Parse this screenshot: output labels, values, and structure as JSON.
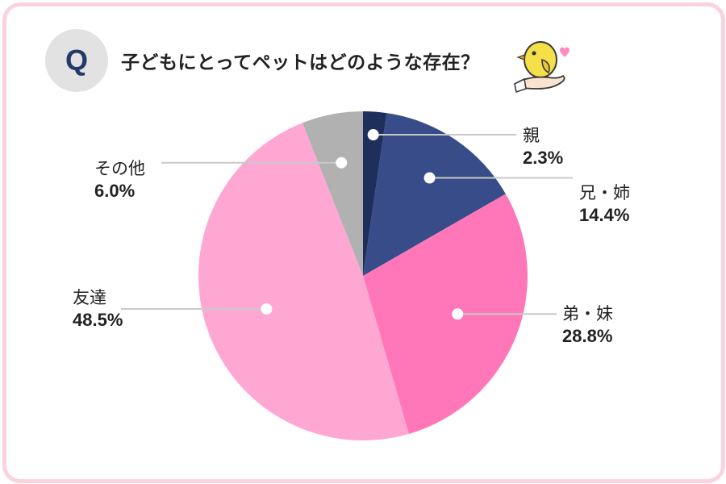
{
  "header": {
    "q_label": "Q",
    "question": "子どもにとってペットはどのような存在？"
  },
  "chart_data": {
    "type": "pie",
    "title": "子どもにとってペットはどのような存在？",
    "series": [
      {
        "label": "親",
        "value": 2.3,
        "display": "2.3%",
        "color": "#1f2f5c"
      },
      {
        "label": "兄・姉",
        "value": 14.4,
        "display": "14.4%",
        "color": "#374c88"
      },
      {
        "label": "弟・妹",
        "value": 28.8,
        "display": "28.8%",
        "color": "#ff77b8"
      },
      {
        "label": "友達",
        "value": 48.5,
        "display": "48.5%",
        "color": "#ffa7d3"
      },
      {
        "label": "その他",
        "value": 6.0,
        "display": "6.0%",
        "color": "#b1b1b1"
      }
    ],
    "start_angle_deg": 0,
    "direction": "clockwise"
  },
  "colors": {
    "frame_border": "#fbd3df",
    "badge_bg": "#e2e2e2",
    "badge_text": "#243a6a",
    "leader_line": "#c9c9c9"
  }
}
